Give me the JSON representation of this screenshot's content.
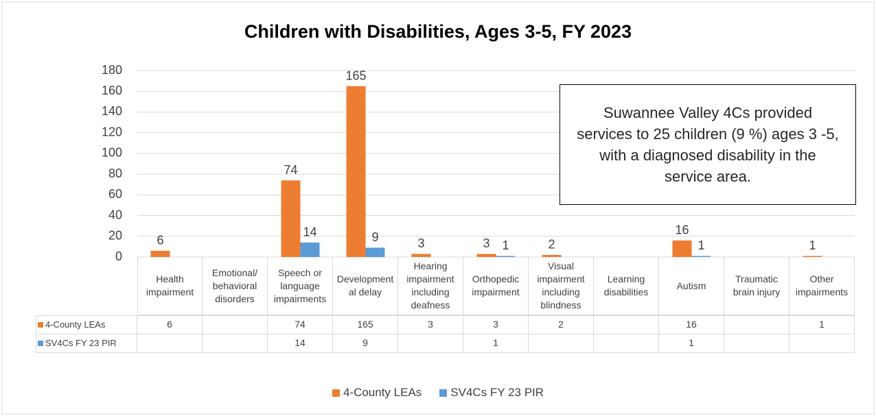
{
  "chart_data": {
    "type": "bar",
    "title": "Children with Disabilities, Ages 3-5, FY 2023",
    "categories": [
      "Health impairment",
      "Emotional/ behavioral disorders",
      "Speech or language impairments",
      "Developmental delay",
      "Hearing impairment including deafness",
      "Orthopedic impairment",
      "Visual impairment including blindness",
      "Learning disabilities",
      "Autism",
      "Traumatic brain injury",
      "Other impairments"
    ],
    "series": [
      {
        "name": "4-County LEAs",
        "color": "#ed7d31",
        "values": [
          6,
          null,
          74,
          165,
          3,
          3,
          2,
          null,
          16,
          null,
          1
        ]
      },
      {
        "name": "SV4Cs FY 23 PIR",
        "color": "#5b9bd5",
        "values": [
          null,
          null,
          14,
          9,
          null,
          1,
          null,
          null,
          1,
          null,
          null
        ]
      }
    ],
    "ylim": [
      0,
      180
    ],
    "yticks": [
      0,
      20,
      40,
      60,
      80,
      100,
      120,
      140,
      160,
      180
    ],
    "grid": true,
    "annotation": "Suwannee Valley 4Cs provided services to 25 children (9 %) ages 3 -5, with a diagnosed disability in the service area."
  }
}
